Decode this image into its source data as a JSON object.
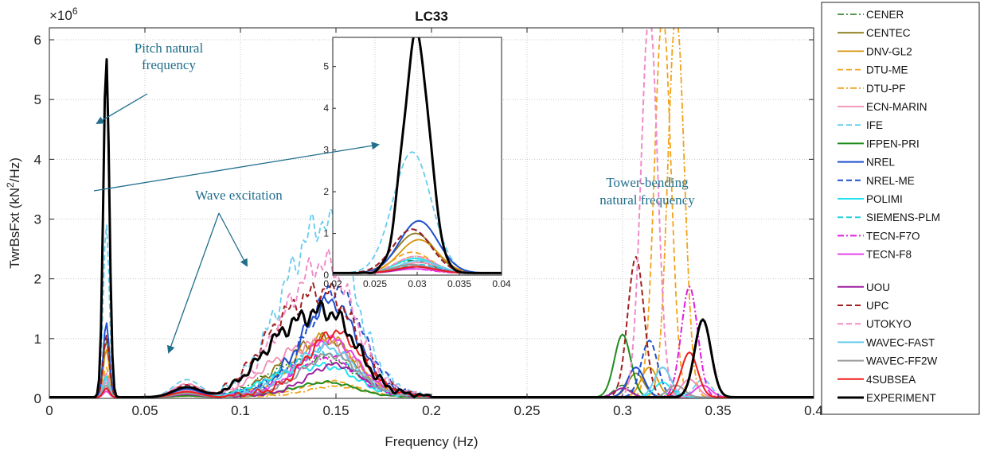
{
  "chart_data": {
    "type": "line",
    "title": "LC33",
    "xlabel": "Frequency (Hz)",
    "ylabel": "TwrBsFxt (kN²/Hz)",
    "ylabel_parts": [
      "TwrBsFxt (kN",
      "2",
      "/Hz)"
    ],
    "exponent_base": "×10",
    "exponent_power": "6",
    "xlim": [
      0,
      0.4
    ],
    "ylim": [
      0,
      6.2
    ],
    "xticks": [
      "0",
      "0.05",
      "0.1",
      "0.15",
      "0.2",
      "0.25",
      "0.3",
      "0.35",
      "0.4"
    ],
    "yticks": [
      "0",
      "1",
      "2",
      "3",
      "4",
      "5",
      "6"
    ],
    "grid": true,
    "legend_position": "outside-right",
    "series": [
      {
        "name": "CENER",
        "color": "#1a7a1a",
        "dash": "dashdot",
        "width": 1.5,
        "peak1": 0.3,
        "band": 0.5,
        "peak2": 0.2
      },
      {
        "name": "CENTEC",
        "color": "#8c7a1a",
        "dash": "solid",
        "width": 1.8,
        "peak1": 0.95,
        "band": 0.65,
        "peak2": 0.4
      },
      {
        "name": "DNV-GL2",
        "color": "#d4950a",
        "dash": "solid",
        "width": 1.8,
        "peak1": 0.8,
        "band": 0.6,
        "peak2": 0.5
      },
      {
        "name": "DTU-ME",
        "color": "#f2a21c",
        "dash": "dash",
        "width": 1.8,
        "peak1": 0.5,
        "band": 0.15,
        "peak2": 6.5
      },
      {
        "name": "DTU-PF",
        "color": "#f2a21c",
        "dash": "dashdot",
        "width": 1.8,
        "peak1": 0.4,
        "band": 0.1,
        "peak2": 6.5
      },
      {
        "name": "ECN-MARIN",
        "color": "#f08cb4",
        "dash": "solid",
        "width": 1.8,
        "peak1": 0.25,
        "band": 0.7,
        "peak2": 0.3
      },
      {
        "name": "IFE",
        "color": "#66ccee",
        "dash": "dash",
        "width": 1.8,
        "peak1": 2.9,
        "band": 1.95,
        "peak2": 0.3
      },
      {
        "name": "IFPEN-PRI",
        "color": "#1f8c1f",
        "dash": "solid",
        "width": 2.0,
        "peak1": 0.15,
        "band": 0.15,
        "peak2": 1.05
      },
      {
        "name": "NREL",
        "color": "#1f4fd0",
        "dash": "solid",
        "width": 2.0,
        "peak1": 1.25,
        "band": 0.9,
        "peak2": 0.5
      },
      {
        "name": "NREL-ME",
        "color": "#1f4fd0",
        "dash": "dash",
        "width": 2.0,
        "peak1": 1.05,
        "band": 1.0,
        "peak2": 0.95
      },
      {
        "name": "POLIMI",
        "color": "#22e4f0",
        "dash": "solid",
        "width": 2.0,
        "peak1": 0.35,
        "band": 0.4,
        "peak2": 0.25
      },
      {
        "name": "SIEMENS-PLM",
        "color": "#22d0e0",
        "dash": "dash",
        "width": 2.0,
        "peak1": 0.2,
        "band": 0.5,
        "peak2": 0.1
      },
      {
        "name": "TECN-F7O",
        "color": "#e01ee0",
        "dash": "dashdot",
        "width": 2.0,
        "peak1": 0.1,
        "band": 0.4,
        "peak2": 1.85
      },
      {
        "name": "TECN-F8",
        "color": "#e844e8",
        "dash": "solid",
        "width": 2.0,
        "peak1": 0.1,
        "band": 0.55,
        "peak2": 0.2
      },
      {
        "name": "UOU",
        "color": "#a01ea0",
        "dash": "solid",
        "width": 2.0,
        "peak1": 0.15,
        "band": 0.3,
        "peak2": 0.15
      },
      {
        "name": "UPC",
        "color": "#a01e1e",
        "dash": "dash",
        "width": 2.0,
        "peak1": 1.05,
        "band": 1.35,
        "peak2": 2.35
      },
      {
        "name": "UTOKYO",
        "color": "#f08cc8",
        "dash": "dash",
        "width": 2.0,
        "peak1": 0.4,
        "band": 1.5,
        "peak2": 6.5
      },
      {
        "name": "WAVEC-FAST",
        "color": "#66ccee",
        "dash": "solid",
        "width": 2.0,
        "peak1": 0.3,
        "band": 0.5,
        "peak2": 0.5
      },
      {
        "name": "WAVEC-FF2W",
        "color": "#999999",
        "dash": "solid",
        "width": 2.0,
        "peak1": 0.2,
        "band": 0.4,
        "peak2": 0.2
      },
      {
        "name": "4SUBSEA",
        "color": "#ee1c1c",
        "dash": "solid",
        "width": 2.0,
        "peak1": 0.15,
        "band": 0.6,
        "peak2": 0.75
      },
      {
        "name": "EXPERIMENT",
        "color": "#000000",
        "dash": "solid",
        "width": 3.0,
        "peak1": 5.7,
        "band": 1.1,
        "peak2": 1.3
      }
    ],
    "inset": {
      "xlim": [
        0.02,
        0.04
      ],
      "ylim": [
        0,
        5.7
      ],
      "xticks": [
        "0.02",
        "0.025",
        "0.03",
        "0.035",
        "0.04"
      ],
      "yticks": [
        "0",
        "1",
        "2",
        "3",
        "4",
        "5"
      ]
    },
    "annotations": [
      {
        "name": "pitch-natural-frequency",
        "lines": [
          "Pitch natural",
          "frequency"
        ]
      },
      {
        "name": "wave-excitation",
        "lines": [
          "Wave excitation"
        ]
      },
      {
        "name": "tower-bending-natural-frequency",
        "lines": [
          "Tower-bending",
          "natural frequency"
        ]
      }
    ]
  }
}
